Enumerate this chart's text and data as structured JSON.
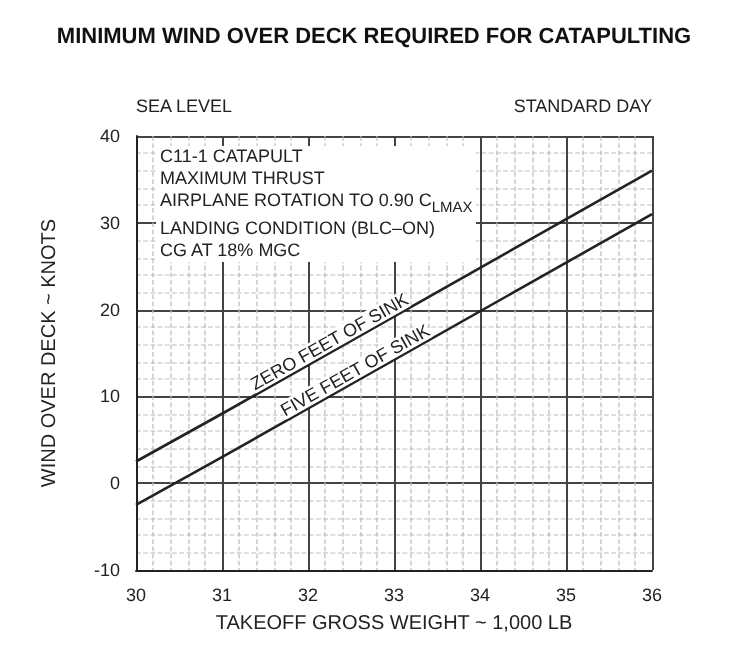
{
  "chart_data": {
    "type": "line",
    "title": "MINIMUM WIND OVER DECK REQUIRED FOR CATAPULTING",
    "xlabel": "TAKEOFF GROSS WEIGHT ~ 1,000 LB",
    "ylabel": "WIND OVER DECK ~ KNOTS",
    "annotations": [
      "SEA LEVEL",
      "STANDARD DAY",
      "C11-1 CATAPULT\nMAXIMUM THRUST\nAIRPLANE ROTATION TO 0.90 C$_{LMAX}$\nLANDING CONDITION (BLC–ON)\nCG AT 18% MGC",
      {
        "text": "ZERO FEET OF SINK",
        "x": 32.3,
        "y": 15.4
      },
      {
        "text": "FIVE FEET OF SINK",
        "x": 32.6,
        "y": 12.1
      }
    ],
    "series": [
      {
        "color": "#222222",
        "x": [
          30,
          31,
          36
        ],
        "values": [
          2.5,
          8,
          36
        ]
      },
      {
        "color": "#222222",
        "x": [
          30,
          31,
          36
        ],
        "values": [
          -2.5,
          3,
          31
        ]
      }
    ],
    "xlim": [
      30,
      36
    ],
    "xticks": [
      30,
      31,
      32,
      33,
      34,
      35,
      36
    ],
    "ylim": [
      -10,
      40
    ],
    "yticks": [
      -10,
      0,
      10,
      20,
      30,
      40
    ],
    "grid": true,
    "marker": "none",
    "line_style": "solid"
  }
}
